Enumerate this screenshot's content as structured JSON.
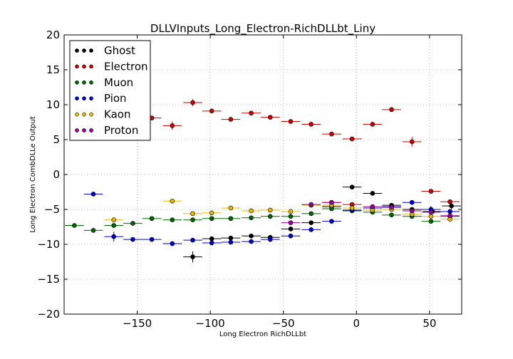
{
  "chart_data": {
    "type": "scatter",
    "title": "DLLVInputs_Long_Electron-RichDLLbt_Liny",
    "xlabel": "Long Electron RichDLLbt",
    "ylabel": "Long Electron CombDLLe Output",
    "xlim": [
      -200,
      72
    ],
    "ylim": [
      -20,
      20
    ],
    "xticks": [
      -150,
      -100,
      -50,
      0,
      50
    ],
    "xtick_labels": [
      "−150",
      "−100",
      "−50",
      "0",
      "50"
    ],
    "yticks": [
      20,
      15,
      10,
      5,
      0,
      -5,
      -10,
      -15,
      -20
    ],
    "ytick_labels": [
      "20",
      "15",
      "10",
      "5",
      "0",
      "−5",
      "−10",
      "−15",
      "−20"
    ],
    "grid": true,
    "legend_position": "top-left",
    "bin_half_width": 6.5,
    "series": [
      {
        "name": "Ghost",
        "color": "#000000",
        "points": [
          {
            "x": -112,
            "y": -11.8,
            "err": 0.8
          },
          {
            "x": -99,
            "y": -9.2,
            "err": 0.3
          },
          {
            "x": -86,
            "y": -9.1,
            "err": 0.3
          },
          {
            "x": -72,
            "y": -8.8,
            "err": 0.3
          },
          {
            "x": -59,
            "y": -9.0,
            "err": 0.3
          },
          {
            "x": -45,
            "y": -7.8,
            "err": 0.2
          },
          {
            "x": -31,
            "y": -6.9,
            "err": 0.2
          },
          {
            "x": -17,
            "y": -4.6,
            "err": 0.2
          },
          {
            "x": -3,
            "y": -1.8,
            "err": 0.2
          },
          {
            "x": 11,
            "y": -2.7,
            "err": 0.2
          },
          {
            "x": 24,
            "y": -4.4,
            "err": 0.2
          },
          {
            "x": 38,
            "y": -5.0,
            "err": 0.3
          },
          {
            "x": 52,
            "y": -5.3,
            "err": 0.3
          },
          {
            "x": 65,
            "y": -4.5,
            "err": 0.5
          }
        ]
      },
      {
        "name": "Electron",
        "color": "#cc0000",
        "points": [
          {
            "x": -140,
            "y": 8.1,
            "err": 0.3
          },
          {
            "x": -126,
            "y": 7.0,
            "err": 0.6
          },
          {
            "x": -112,
            "y": 10.3,
            "err": 0.5
          },
          {
            "x": -99,
            "y": 9.1,
            "err": 0.3
          },
          {
            "x": -86,
            "y": 7.9,
            "err": 0.2
          },
          {
            "x": -72,
            "y": 8.8,
            "err": 0.2
          },
          {
            "x": -59,
            "y": 8.2,
            "err": 0.2
          },
          {
            "x": -45,
            "y": 7.6,
            "err": 0.2
          },
          {
            "x": -31,
            "y": 7.2,
            "err": 0.2
          },
          {
            "x": -17,
            "y": 5.8,
            "err": 0.2
          },
          {
            "x": -3,
            "y": 5.1,
            "err": 0.2
          },
          {
            "x": 11,
            "y": 7.2,
            "err": 0.2
          },
          {
            "x": 24,
            "y": 9.3,
            "err": 0.2
          },
          {
            "x": 38,
            "y": 4.7,
            "err": 0.7
          },
          {
            "x": 51,
            "y": -2.4,
            "err": 0.2
          },
          {
            "x": 64,
            "y": -3.9,
            "err": 0.2
          },
          {
            "x": -17,
            "y": -4.0,
            "err": 0.2
          },
          {
            "x": -3,
            "y": -4.3,
            "err": 0.2
          }
        ]
      },
      {
        "name": "Muon",
        "color": "#006600",
        "points": [
          {
            "x": -193,
            "y": -7.3,
            "err": 0.2
          },
          {
            "x": -180,
            "y": -8.0,
            "err": 0.3
          },
          {
            "x": -166,
            "y": -7.3,
            "err": 0.3
          },
          {
            "x": -153,
            "y": -7.0,
            "err": 0.2
          },
          {
            "x": -140,
            "y": -6.3,
            "err": 0.2
          },
          {
            "x": -126,
            "y": -6.5,
            "err": 0.2
          },
          {
            "x": -112,
            "y": -6.5,
            "err": 0.2
          },
          {
            "x": -99,
            "y": -6.3,
            "err": 0.2
          },
          {
            "x": -86,
            "y": -6.3,
            "err": 0.2
          },
          {
            "x": -72,
            "y": -6.2,
            "err": 0.2
          },
          {
            "x": -59,
            "y": -6.0,
            "err": 0.2
          },
          {
            "x": -45,
            "y": -6.0,
            "err": 0.2
          },
          {
            "x": -31,
            "y": -5.6,
            "err": 0.2
          },
          {
            "x": -17,
            "y": -4.9,
            "err": 0.2
          },
          {
            "x": -3,
            "y": -5.2,
            "err": 0.2
          },
          {
            "x": 11,
            "y": -5.4,
            "err": 0.2
          },
          {
            "x": 24,
            "y": -5.8,
            "err": 0.2
          },
          {
            "x": 38,
            "y": -6.0,
            "err": 0.2
          },
          {
            "x": 51,
            "y": -6.7,
            "err": 0.2
          },
          {
            "x": 64,
            "y": -6.0,
            "err": 0.2
          }
        ]
      },
      {
        "name": "Pion",
        "color": "#0000cc",
        "points": [
          {
            "x": -180,
            "y": -2.8,
            "err": 0.2
          },
          {
            "x": -166,
            "y": -8.9,
            "err": 0.7
          },
          {
            "x": -153,
            "y": -9.3,
            "err": 0.3
          },
          {
            "x": -140,
            "y": -9.3,
            "err": 0.2
          },
          {
            "x": -126,
            "y": -9.9,
            "err": 0.2
          },
          {
            "x": -112,
            "y": -9.4,
            "err": 0.2
          },
          {
            "x": -99,
            "y": -9.8,
            "err": 0.2
          },
          {
            "x": -86,
            "y": -9.7,
            "err": 0.2
          },
          {
            "x": -72,
            "y": -9.6,
            "err": 0.2
          },
          {
            "x": -59,
            "y": -9.3,
            "err": 0.2
          },
          {
            "x": -45,
            "y": -8.8,
            "err": 0.2
          },
          {
            "x": -31,
            "y": -7.9,
            "err": 0.2
          },
          {
            "x": -17,
            "y": -6.7,
            "err": 0.2
          },
          {
            "x": -3,
            "y": -5.1,
            "err": 0.2
          },
          {
            "x": 11,
            "y": -4.8,
            "err": 0.2
          },
          {
            "x": 24,
            "y": -4.6,
            "err": 0.2
          },
          {
            "x": 38,
            "y": -4.0,
            "err": 0.2
          },
          {
            "x": 51,
            "y": -5.0,
            "err": 0.5
          },
          {
            "x": 64,
            "y": -5.3,
            "err": 0.3
          }
        ]
      },
      {
        "name": "Kaon",
        "color": "#e6b800",
        "points": [
          {
            "x": -166,
            "y": -6.5,
            "err": 0.2
          },
          {
            "x": -126,
            "y": -3.8,
            "err": 0.2
          },
          {
            "x": -112,
            "y": -5.6,
            "err": 0.2
          },
          {
            "x": -99,
            "y": -5.5,
            "err": 0.2
          },
          {
            "x": -86,
            "y": -4.8,
            "err": 0.2
          },
          {
            "x": -72,
            "y": -5.2,
            "err": 0.2
          },
          {
            "x": -59,
            "y": -5.1,
            "err": 0.2
          },
          {
            "x": -45,
            "y": -5.3,
            "err": 0.2
          },
          {
            "x": -31,
            "y": -4.4,
            "err": 0.2
          },
          {
            "x": -17,
            "y": -4.4,
            "err": 0.2
          },
          {
            "x": -3,
            "y": -4.8,
            "err": 0.2
          },
          {
            "x": 11,
            "y": -5.1,
            "err": 0.2
          },
          {
            "x": 24,
            "y": -5.0,
            "err": 0.2
          },
          {
            "x": 38,
            "y": -5.7,
            "err": 0.2
          },
          {
            "x": 51,
            "y": -6.0,
            "err": 0.2
          },
          {
            "x": 64,
            "y": -6.4,
            "err": 0.2
          }
        ]
      },
      {
        "name": "Proton",
        "color": "#990099",
        "points": [
          {
            "x": -45,
            "y": -6.9,
            "err": 0.2
          },
          {
            "x": -31,
            "y": -4.3,
            "err": 0.2
          },
          {
            "x": -17,
            "y": -4.0,
            "err": 0.2
          },
          {
            "x": 11,
            "y": -4.6,
            "err": 0.2
          },
          {
            "x": 24,
            "y": -4.7,
            "err": 0.2
          },
          {
            "x": 38,
            "y": -5.2,
            "err": 0.2
          },
          {
            "x": 51,
            "y": -5.4,
            "err": 0.2
          },
          {
            "x": 64,
            "y": -5.9,
            "err": 0.2
          }
        ]
      }
    ]
  }
}
